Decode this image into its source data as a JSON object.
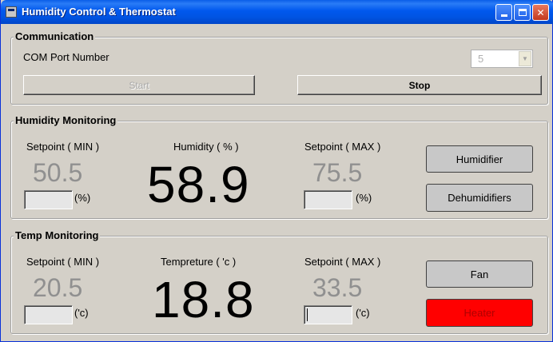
{
  "window": {
    "title": "Humidity Control & Thermostat"
  },
  "communication": {
    "group_title": "Communication",
    "com_port_label": "COM Port Number",
    "com_port_value": "5",
    "start_label": "Start",
    "stop_label": "Stop"
  },
  "humidity": {
    "group_title": "Humidity Monitoring",
    "setpoint_min_label": "Setpoint ( MIN )",
    "setpoint_min_value": "50.5",
    "min_unit": "(%)",
    "reading_label": "Humidity ( % )",
    "reading_value": "58.9",
    "setpoint_max_label": "Setpoint ( MAX )",
    "setpoint_max_value": "75.5",
    "max_unit": "(%)",
    "humidifier_label": "Humidifier",
    "dehumidifier_label": "Dehumidifiers"
  },
  "temp": {
    "group_title": "Temp Monitoring",
    "setpoint_min_label": "Setpoint ( MIN )",
    "setpoint_min_value": "20.5",
    "min_unit": "('c)",
    "reading_label": "Tempreture ( 'c )",
    "reading_value": "18.8",
    "setpoint_max_label": "Setpoint ( MAX )",
    "setpoint_max_value": "33.5",
    "max_unit": "('c)",
    "fan_label": "Fan",
    "heater_label": "Heater"
  },
  "colors": {
    "heater_active": "#ff0000",
    "setpoint_text": "#909090"
  }
}
